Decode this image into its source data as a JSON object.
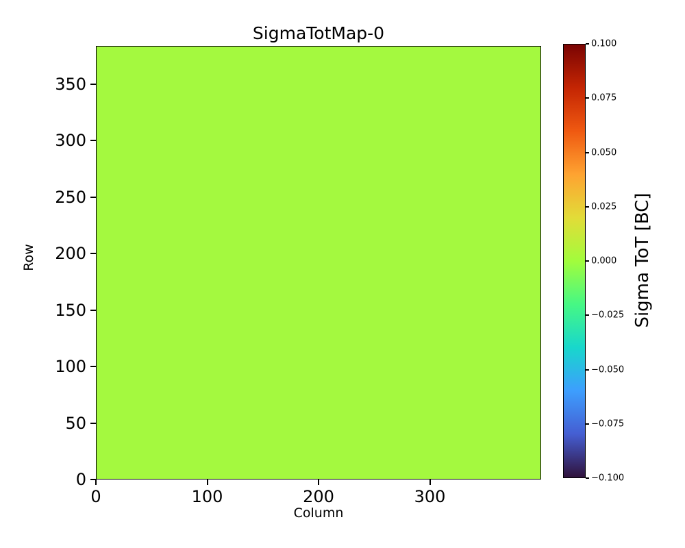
{
  "figure": {
    "background": "#ffffff"
  },
  "chart_data": {
    "type": "heatmap",
    "title": "SigmaTotMap-0",
    "xlabel": "Column",
    "ylabel": "Row",
    "xlim": [
      0,
      400
    ],
    "ylim": [
      0,
      384
    ],
    "x_ticks": [
      0,
      100,
      200,
      300
    ],
    "y_ticks": [
      0,
      50,
      100,
      150,
      200,
      250,
      300,
      350
    ],
    "values": "uniform",
    "uniform_value": 0.0,
    "uniform_color": "#a4f93f",
    "grid": false,
    "colorbar": {
      "label": "Sigma ToT [BC]",
      "vmin": -0.1,
      "vmax": 0.1,
      "ticks": [
        0.1,
        0.075,
        0.05,
        0.025,
        0.0,
        -0.025,
        -0.05,
        -0.075,
        -0.1
      ],
      "tick_labels": [
        "0.100",
        "0.075",
        "0.050",
        "0.025",
        "0.000",
        "−0.025",
        "−0.050",
        "−0.075",
        "−0.100"
      ],
      "colormap": "turbo",
      "gradient_top_to_bottom": [
        "#7a0403",
        "#c42503",
        "#ef5911",
        "#fea331",
        "#e2dc38",
        "#a2fc3c",
        "#46f884",
        "#18d7cc",
        "#3d9efe",
        "#455ed2",
        "#30123b"
      ]
    }
  }
}
